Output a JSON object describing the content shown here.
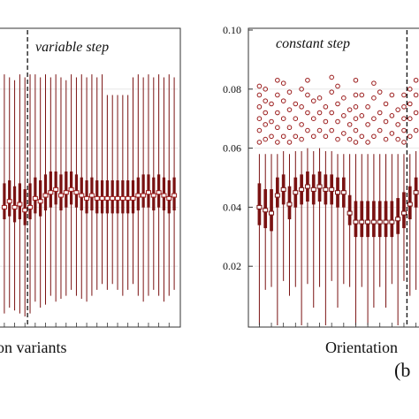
{
  "panel_label": "(b",
  "chart_data": [
    {
      "type": "box",
      "annotation": "variable step",
      "xlabel": "on variants",
      "ylabel": "",
      "yticks": [],
      "ylim": [
        0,
        0.1
      ],
      "grid": true,
      "box_color": "#7a1212",
      "mean_marker_color": "#9b1c1c",
      "dashed_marker_position": 5,
      "boxes": [
        {
          "q1": 0.036,
          "median": 0.04,
          "q3": 0.048,
          "whisker_low": 0.004,
          "whisker_high": 0.085
        },
        {
          "q1": 0.037,
          "median": 0.042,
          "q3": 0.049,
          "whisker_low": 0.006,
          "whisker_high": 0.084
        },
        {
          "q1": 0.035,
          "median": 0.04,
          "q3": 0.047,
          "whisker_low": 0.005,
          "whisker_high": 0.083
        },
        {
          "q1": 0.036,
          "median": 0.041,
          "q3": 0.048,
          "whisker_low": 0.004,
          "whisker_high": 0.085
        },
        {
          "q1": 0.034,
          "median": 0.039,
          "q3": 0.046,
          "whisker_low": 0.003,
          "whisker_high": 0.084
        },
        {
          "q1": 0.036,
          "median": 0.04,
          "q3": 0.048,
          "whisker_low": 0.004,
          "whisker_high": 0.085
        },
        {
          "q1": 0.038,
          "median": 0.043,
          "q3": 0.05,
          "whisker_low": 0.008,
          "whisker_high": 0.085
        },
        {
          "q1": 0.037,
          "median": 0.042,
          "q3": 0.049,
          "whisker_low": 0.006,
          "whisker_high": 0.084
        },
        {
          "q1": 0.039,
          "median": 0.044,
          "q3": 0.051,
          "whisker_low": 0.007,
          "whisker_high": 0.085
        },
        {
          "q1": 0.04,
          "median": 0.045,
          "q3": 0.052,
          "whisker_low": 0.01,
          "whisker_high": 0.084
        },
        {
          "q1": 0.041,
          "median": 0.046,
          "q3": 0.052,
          "whisker_low": 0.008,
          "whisker_high": 0.085
        },
        {
          "q1": 0.039,
          "median": 0.044,
          "q3": 0.051,
          "whisker_low": 0.009,
          "whisker_high": 0.084
        },
        {
          "q1": 0.04,
          "median": 0.045,
          "q3": 0.052,
          "whisker_low": 0.01,
          "whisker_high": 0.083
        },
        {
          "q1": 0.041,
          "median": 0.046,
          "q3": 0.052,
          "whisker_low": 0.012,
          "whisker_high": 0.085
        },
        {
          "q1": 0.04,
          "median": 0.045,
          "q3": 0.051,
          "whisker_low": 0.01,
          "whisker_high": 0.084
        },
        {
          "q1": 0.039,
          "median": 0.044,
          "q3": 0.05,
          "whisker_low": 0.009,
          "whisker_high": 0.085
        },
        {
          "q1": 0.038,
          "median": 0.043,
          "q3": 0.049,
          "whisker_low": 0.008,
          "whisker_high": 0.084
        },
        {
          "q1": 0.039,
          "median": 0.044,
          "q3": 0.05,
          "whisker_low": 0.01,
          "whisker_high": 0.085
        },
        {
          "q1": 0.038,
          "median": 0.043,
          "q3": 0.049,
          "whisker_low": 0.012,
          "whisker_high": 0.084
        },
        {
          "q1": 0.038,
          "median": 0.043,
          "q3": 0.049,
          "whisker_low": 0.014,
          "whisker_high": 0.085
        },
        {
          "q1": 0.038,
          "median": 0.043,
          "q3": 0.049,
          "whisker_low": 0.012,
          "whisker_high": 0.078
        },
        {
          "q1": 0.038,
          "median": 0.043,
          "q3": 0.049,
          "whisker_low": 0.014,
          "whisker_high": 0.078
        },
        {
          "q1": 0.038,
          "median": 0.043,
          "q3": 0.049,
          "whisker_low": 0.012,
          "whisker_high": 0.078
        },
        {
          "q1": 0.038,
          "median": 0.043,
          "q3": 0.049,
          "whisker_low": 0.01,
          "whisker_high": 0.078
        },
        {
          "q1": 0.038,
          "median": 0.043,
          "q3": 0.049,
          "whisker_low": 0.012,
          "whisker_high": 0.078
        },
        {
          "q1": 0.038,
          "median": 0.043,
          "q3": 0.049,
          "whisker_low": 0.014,
          "whisker_high": 0.084
        },
        {
          "q1": 0.039,
          "median": 0.044,
          "q3": 0.05,
          "whisker_low": 0.01,
          "whisker_high": 0.085
        },
        {
          "q1": 0.04,
          "median": 0.044,
          "q3": 0.051,
          "whisker_low": 0.008,
          "whisker_high": 0.084
        },
        {
          "q1": 0.04,
          "median": 0.045,
          "q3": 0.051,
          "whisker_low": 0.01,
          "whisker_high": 0.085
        },
        {
          "q1": 0.039,
          "median": 0.044,
          "q3": 0.05,
          "whisker_low": 0.012,
          "whisker_high": 0.084
        },
        {
          "q1": 0.04,
          "median": 0.045,
          "q3": 0.051,
          "whisker_low": 0.01,
          "whisker_high": 0.085
        },
        {
          "q1": 0.039,
          "median": 0.044,
          "q3": 0.05,
          "whisker_low": 0.008,
          "whisker_high": 0.084
        },
        {
          "q1": 0.038,
          "median": 0.043,
          "q3": 0.049,
          "whisker_low": 0.01,
          "whisker_high": 0.085
        },
        {
          "q1": 0.039,
          "median": 0.044,
          "q3": 0.05,
          "whisker_low": 0.012,
          "whisker_high": 0.084
        }
      ]
    },
    {
      "type": "box",
      "annotation": "constant step",
      "xlabel": "Orientation",
      "ylabel": "",
      "yticks": [
        0.02,
        0.04,
        0.06,
        0.08,
        0.1
      ],
      "ytick_labels": [
        "0.02",
        "0.04",
        "0.06",
        "0.08",
        "0.10"
      ],
      "ylim": [
        0,
        0.1
      ],
      "grid": true,
      "box_color": "#7a1212",
      "outlier_color": "#9b1c1c",
      "dashed_marker_position": 25,
      "boxes": [
        {
          "q1": 0.034,
          "median": 0.04,
          "q3": 0.048,
          "whisker_low": 0.0,
          "whisker_high": 0.058,
          "outliers": [
            0.062,
            0.066,
            0.07,
            0.074,
            0.078,
            0.081
          ]
        },
        {
          "q1": 0.033,
          "median": 0.039,
          "q3": 0.046,
          "whisker_low": 0.012,
          "whisker_high": 0.058,
          "outliers": [
            0.063,
            0.068,
            0.072,
            0.076,
            0.08
          ]
        },
        {
          "q1": 0.032,
          "median": 0.038,
          "q3": 0.046,
          "whisker_low": 0.013,
          "whisker_high": 0.058,
          "outliers": [
            0.064,
            0.069,
            0.075
          ]
        },
        {
          "q1": 0.04,
          "median": 0.044,
          "q3": 0.05,
          "whisker_low": 0.0,
          "whisker_high": 0.058,
          "outliers": [
            0.062,
            0.067,
            0.072,
            0.078,
            0.083
          ]
        },
        {
          "q1": 0.041,
          "median": 0.046,
          "q3": 0.051,
          "whisker_low": 0.015,
          "whisker_high": 0.059,
          "outliers": [
            0.064,
            0.07,
            0.076,
            0.082
          ]
        },
        {
          "q1": 0.036,
          "median": 0.041,
          "q3": 0.047,
          "whisker_low": 0.01,
          "whisker_high": 0.058,
          "outliers": [
            0.062,
            0.067,
            0.073,
            0.079
          ]
        },
        {
          "q1": 0.04,
          "median": 0.045,
          "q3": 0.05,
          "whisker_low": 0.013,
          "whisker_high": 0.059,
          "outliers": [
            0.064,
            0.07,
            0.075
          ]
        },
        {
          "q1": 0.041,
          "median": 0.046,
          "q3": 0.051,
          "whisker_low": 0.0,
          "whisker_high": 0.059,
          "outliers": [
            0.063,
            0.068,
            0.074,
            0.08
          ]
        },
        {
          "q1": 0.042,
          "median": 0.047,
          "q3": 0.052,
          "whisker_low": 0.014,
          "whisker_high": 0.06,
          "outliers": [
            0.066,
            0.072,
            0.078,
            0.083
          ]
        },
        {
          "q1": 0.041,
          "median": 0.046,
          "q3": 0.051,
          "whisker_low": 0.006,
          "whisker_high": 0.059,
          "outliers": [
            0.064,
            0.07,
            0.076
          ]
        },
        {
          "q1": 0.042,
          "median": 0.047,
          "q3": 0.052,
          "whisker_low": 0.013,
          "whisker_high": 0.06,
          "outliers": [
            0.066,
            0.072,
            0.077
          ]
        },
        {
          "q1": 0.041,
          "median": 0.046,
          "q3": 0.051,
          "whisker_low": 0.0,
          "whisker_high": 0.059,
          "outliers": [
            0.064,
            0.069,
            0.074
          ]
        },
        {
          "q1": 0.041,
          "median": 0.046,
          "q3": 0.051,
          "whisker_low": 0.015,
          "whisker_high": 0.059,
          "outliers": [
            0.066,
            0.072,
            0.079,
            0.084
          ]
        },
        {
          "q1": 0.04,
          "median": 0.045,
          "q3": 0.05,
          "whisker_low": 0.006,
          "whisker_high": 0.058,
          "outliers": [
            0.063,
            0.069,
            0.075,
            0.081
          ]
        },
        {
          "q1": 0.04,
          "median": 0.045,
          "q3": 0.05,
          "whisker_low": 0.014,
          "whisker_high": 0.058,
          "outliers": [
            0.065,
            0.071,
            0.077
          ]
        },
        {
          "q1": 0.034,
          "median": 0.038,
          "q3": 0.044,
          "whisker_low": 0.013,
          "whisker_high": 0.058,
          "outliers": [
            0.063,
            0.068,
            0.073
          ]
        },
        {
          "q1": 0.03,
          "median": 0.035,
          "q3": 0.042,
          "whisker_low": 0.0,
          "whisker_high": 0.058,
          "outliers": [
            0.062,
            0.066,
            0.07,
            0.074,
            0.078,
            0.083
          ]
        },
        {
          "q1": 0.03,
          "median": 0.035,
          "q3": 0.042,
          "whisker_low": 0.013,
          "whisker_high": 0.058,
          "outliers": [
            0.064,
            0.071,
            0.078
          ]
        },
        {
          "q1": 0.03,
          "median": 0.035,
          "q3": 0.042,
          "whisker_low": 0.0,
          "whisker_high": 0.058,
          "outliers": [
            0.062,
            0.068,
            0.074
          ]
        },
        {
          "q1": 0.03,
          "median": 0.035,
          "q3": 0.042,
          "whisker_low": 0.006,
          "whisker_high": 0.058,
          "outliers": [
            0.064,
            0.07,
            0.077,
            0.082
          ]
        },
        {
          "q1": 0.03,
          "median": 0.035,
          "q3": 0.042,
          "whisker_low": 0.013,
          "whisker_high": 0.058,
          "outliers": [
            0.066,
            0.072,
            0.079
          ]
        },
        {
          "q1": 0.03,
          "median": 0.035,
          "q3": 0.042,
          "whisker_low": 0.006,
          "whisker_high": 0.058,
          "outliers": [
            0.063,
            0.069,
            0.075
          ]
        },
        {
          "q1": 0.03,
          "median": 0.035,
          "q3": 0.042,
          "whisker_low": 0.014,
          "whisker_high": 0.058,
          "outliers": [
            0.065,
            0.071,
            0.078
          ]
        },
        {
          "q1": 0.031,
          "median": 0.036,
          "q3": 0.043,
          "whisker_low": 0.0,
          "whisker_high": 0.058,
          "outliers": [
            0.063,
            0.068,
            0.073
          ]
        },
        {
          "q1": 0.033,
          "median": 0.038,
          "q3": 0.045,
          "whisker_low": 0.015,
          "whisker_high": 0.058,
          "outliers": [
            0.062,
            0.066,
            0.07,
            0.074,
            0.078
          ]
        },
        {
          "q1": 0.036,
          "median": 0.041,
          "q3": 0.047,
          "whisker_low": 0.01,
          "whisker_high": 0.058,
          "outliers": [
            0.064,
            0.07,
            0.075,
            0.08
          ]
        },
        {
          "q1": 0.04,
          "median": 0.045,
          "q3": 0.05,
          "whisker_low": 0.012,
          "whisker_high": 0.059,
          "outliers": [
            0.066,
            0.072,
            0.078,
            0.083
          ]
        }
      ]
    }
  ]
}
